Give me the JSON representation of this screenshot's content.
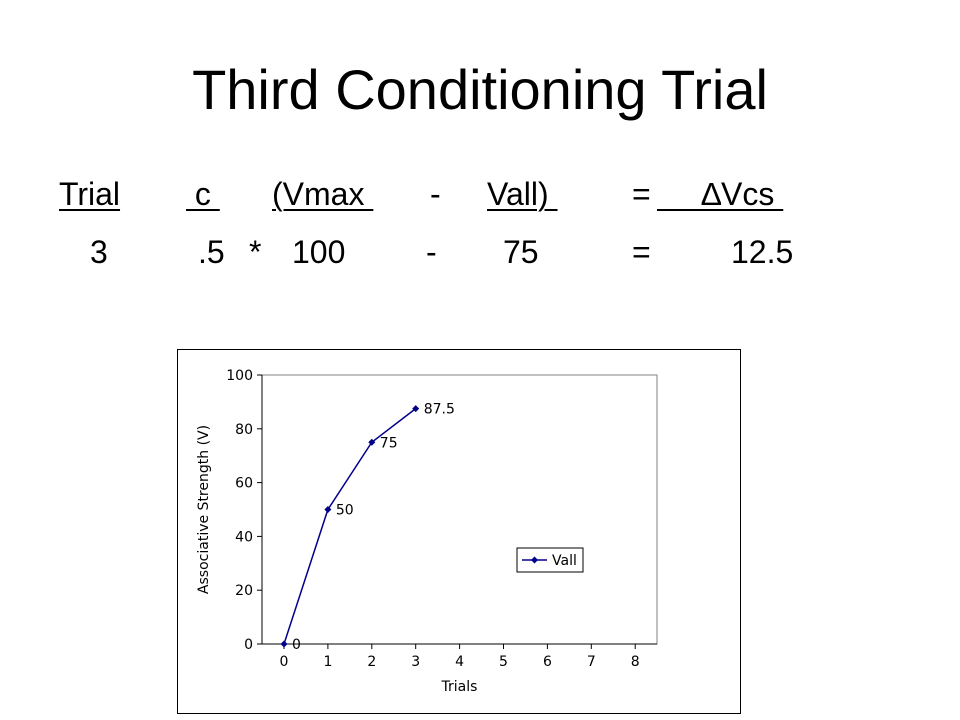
{
  "slide": {
    "title": "Third Conditioning Trial"
  },
  "equation": {
    "header": {
      "trial": "Trial",
      "c": " c ",
      "vmax": "(Vmax ",
      "minus": "-",
      "vall": "Vall) ",
      "equals": "=",
      "delta_vcs": "     ∆Vcs "
    },
    "values": {
      "trial": "3",
      "c": ".5",
      "times": "*",
      "vmax": "100",
      "minus": "-",
      "vall": "75",
      "equals": "=",
      "delta_vcs": "12.5"
    }
  },
  "chart_data": {
    "type": "line",
    "xlabel": "Trials",
    "ylabel": "Associative Strength (V)",
    "xlim": [
      0,
      8
    ],
    "ylim": [
      0,
      100
    ],
    "xticks": [
      "0",
      "1",
      "2",
      "3",
      "4",
      "5",
      "6",
      "7",
      "8"
    ],
    "yticks": [
      "0",
      "20",
      "40",
      "60",
      "80",
      "100"
    ],
    "grid": false,
    "legend_position": "right",
    "series": [
      {
        "name": "Vall",
        "color": "#00008B",
        "x": [
          0,
          1,
          2,
          3
        ],
        "y": [
          0,
          50,
          75,
          87.5
        ],
        "data_labels": [
          "0",
          "50",
          "75",
          "87.5"
        ]
      }
    ]
  }
}
